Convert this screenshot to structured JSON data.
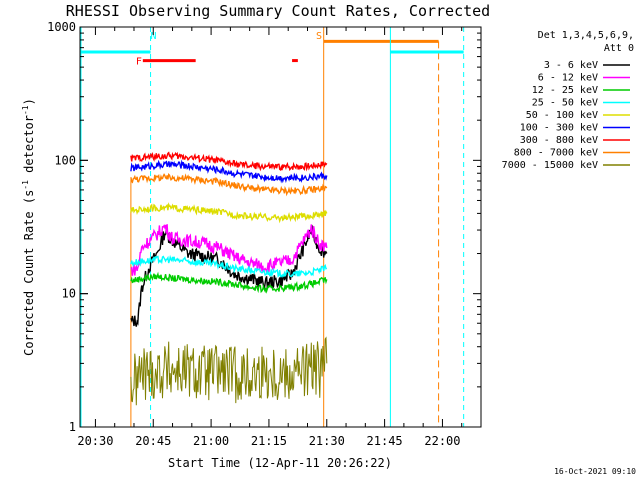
{
  "chart_data": {
    "type": "line",
    "title": "RHESSI Observing Summary Count Rates, Corrected",
    "xlabel": "Start Time (12-Apr-11 20:26:22)",
    "ylabel": "Corrected Count Rate (s",
    "ylabel_sup1": "-1",
    "ylabel_mid": " detector",
    "ylabel_sup2": "-1",
    "ylabel_end": ")",
    "y_scale": "log",
    "ylim": [
      1,
      1000
    ],
    "yticks": [
      {
        "value": 1,
        "label": "1"
      },
      {
        "value": 10,
        "label": "10"
      },
      {
        "value": 100,
        "label": "100"
      },
      {
        "value": 1000,
        "label": "1000"
      }
    ],
    "xlim_minutes": [
      0,
      104
    ],
    "xticks": [
      {
        "minute": 4,
        "label": "20:30"
      },
      {
        "minute": 19,
        "label": "20:45"
      },
      {
        "minute": 34,
        "label": "21:00"
      },
      {
        "minute": 49,
        "label": "21:15"
      },
      {
        "minute": 64,
        "label": "21:30"
      },
      {
        "minute": 79,
        "label": "21:45"
      },
      {
        "minute": 94,
        "label": "22:00"
      }
    ],
    "legend_header": [
      "Det 1,3,4,5,6,9,",
      "Att 0"
    ],
    "legend_position": "right",
    "series": [
      {
        "name": "3 - 6 keV",
        "color": "#000000",
        "points": [
          [
            13.2,
            6.2
          ],
          [
            15,
            6.3
          ],
          [
            16,
            11
          ],
          [
            18,
            16
          ],
          [
            20,
            20
          ],
          [
            22,
            29
          ],
          [
            24,
            25
          ],
          [
            28,
            20
          ],
          [
            32,
            19
          ],
          [
            36,
            18
          ],
          [
            40,
            14
          ],
          [
            44,
            13
          ],
          [
            48,
            12
          ],
          [
            52,
            12.5
          ],
          [
            55,
            14
          ],
          [
            58,
            22
          ],
          [
            60,
            30
          ],
          [
            62,
            22
          ],
          [
            64,
            20
          ]
        ]
      },
      {
        "name": "6 - 12 keV",
        "color": "#ff00ff",
        "points": [
          [
            13.2,
            15
          ],
          [
            15,
            15.5
          ],
          [
            16,
            22
          ],
          [
            18,
            25
          ],
          [
            20,
            28
          ],
          [
            22,
            32
          ],
          [
            24,
            26
          ],
          [
            28,
            25
          ],
          [
            32,
            24
          ],
          [
            36,
            22
          ],
          [
            40,
            19
          ],
          [
            44,
            17
          ],
          [
            48,
            16
          ],
          [
            52,
            17
          ],
          [
            55,
            18
          ],
          [
            58,
            25
          ],
          [
            60,
            31
          ],
          [
            62,
            24
          ],
          [
            64,
            22
          ]
        ]
      },
      {
        "name": "12 - 25 keV",
        "color": "#00cc00",
        "points": [
          [
            13.2,
            12.5
          ],
          [
            16,
            13
          ],
          [
            20,
            13.5
          ],
          [
            24,
            13
          ],
          [
            28,
            12.8
          ],
          [
            32,
            12.5
          ],
          [
            36,
            12.2
          ],
          [
            40,
            11.8
          ],
          [
            44,
            11.2
          ],
          [
            48,
            10.8
          ],
          [
            52,
            11
          ],
          [
            56,
            11.3
          ],
          [
            60,
            11.8
          ],
          [
            62,
            12.3
          ],
          [
            64,
            12.8
          ]
        ]
      },
      {
        "name": "25 - 50 keV",
        "color": "#00ffff",
        "points": [
          [
            13.2,
            17
          ],
          [
            16,
            17.5
          ],
          [
            20,
            18
          ],
          [
            24,
            18
          ],
          [
            28,
            17.5
          ],
          [
            32,
            17
          ],
          [
            36,
            16.5
          ],
          [
            40,
            15.5
          ],
          [
            44,
            15
          ],
          [
            48,
            14.5
          ],
          [
            52,
            14.2
          ],
          [
            56,
            14
          ],
          [
            60,
            14.5
          ],
          [
            62,
            15
          ],
          [
            64,
            15.5
          ]
        ]
      },
      {
        "name": "50 - 100 keV",
        "color": "#dddd00",
        "points": [
          [
            13.2,
            42
          ],
          [
            16,
            43
          ],
          [
            20,
            44
          ],
          [
            24,
            44
          ],
          [
            28,
            43
          ],
          [
            32,
            42
          ],
          [
            36,
            41
          ],
          [
            40,
            39
          ],
          [
            44,
            38
          ],
          [
            48,
            37.5
          ],
          [
            52,
            37
          ],
          [
            56,
            37.5
          ],
          [
            60,
            38.5
          ],
          [
            62,
            39
          ],
          [
            64,
            40
          ]
        ]
      },
      {
        "name": "100 - 300 keV",
        "color": "#0000ff",
        "points": [
          [
            13.2,
            87
          ],
          [
            16,
            89
          ],
          [
            20,
            92
          ],
          [
            24,
            93
          ],
          [
            28,
            91
          ],
          [
            32,
            88
          ],
          [
            36,
            85
          ],
          [
            40,
            80
          ],
          [
            44,
            77
          ],
          [
            48,
            75
          ],
          [
            52,
            74
          ],
          [
            56,
            74
          ],
          [
            60,
            75
          ],
          [
            62,
            76
          ],
          [
            64,
            77
          ]
        ]
      },
      {
        "name": "300 - 800 keV",
        "color": "#ff0000",
        "points": [
          [
            13.2,
            103
          ],
          [
            16,
            105
          ],
          [
            20,
            107
          ],
          [
            24,
            108
          ],
          [
            28,
            106
          ],
          [
            32,
            103
          ],
          [
            36,
            99
          ],
          [
            40,
            94
          ],
          [
            44,
            91
          ],
          [
            48,
            90
          ],
          [
            52,
            89
          ],
          [
            56,
            90
          ],
          [
            60,
            91
          ],
          [
            62,
            93
          ],
          [
            64,
            95
          ]
        ]
      },
      {
        "name": "800 - 7000 keV",
        "color": "#ff8000",
        "points": [
          [
            13.2,
            72
          ],
          [
            16,
            73
          ],
          [
            20,
            74
          ],
          [
            24,
            74
          ],
          [
            28,
            73
          ],
          [
            32,
            71
          ],
          [
            36,
            69
          ],
          [
            40,
            65
          ],
          [
            44,
            62
          ],
          [
            48,
            60
          ],
          [
            52,
            59
          ],
          [
            56,
            59
          ],
          [
            60,
            60
          ],
          [
            62,
            61
          ],
          [
            64,
            62
          ]
        ]
      },
      {
        "name": "7000 - 15000 keV",
        "color": "#808000",
        "points": [
          [
            13.2,
            2
          ],
          [
            16,
            2.5
          ],
          [
            20,
            2.6
          ],
          [
            24,
            2.7
          ],
          [
            28,
            2.6
          ],
          [
            32,
            2.5
          ],
          [
            36,
            2.6
          ],
          [
            40,
            2.5
          ],
          [
            44,
            2.4
          ],
          [
            48,
            2.6
          ],
          [
            52,
            2.5
          ],
          [
            56,
            2.6
          ],
          [
            60,
            2.7
          ],
          [
            62,
            2.7
          ],
          [
            64,
            3
          ]
        ]
      }
    ],
    "annotations": [
      {
        "text": "N",
        "minute": 18.3,
        "color": "#00ffff"
      },
      {
        "text": "F",
        "minute": 14.5,
        "color": "#ff0000"
      },
      {
        "text": "S",
        "minute": 61.2,
        "color": "#ff8000"
      }
    ],
    "timestamp": "16-Oct-2021 09:10"
  }
}
